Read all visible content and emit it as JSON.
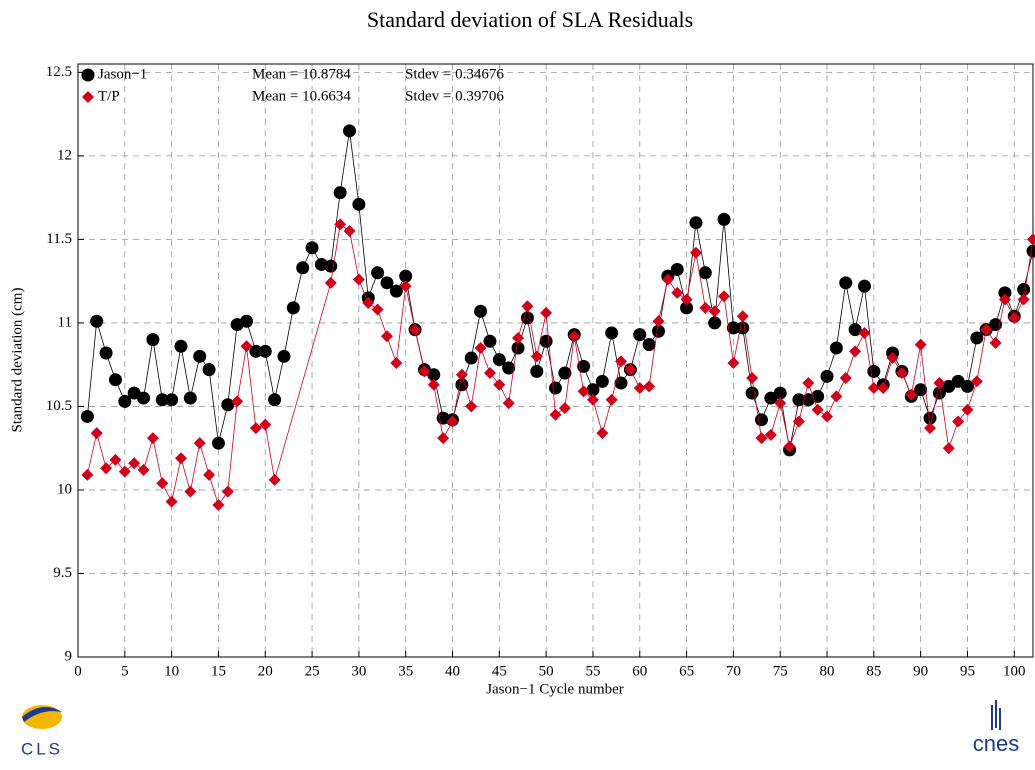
{
  "chart_data": {
    "type": "line",
    "title": "Standard deviation of SLA Residuals",
    "x_label": "Jason−1 Cycle number",
    "y_label": "Standard deviation (cm)",
    "xlim": [
      0,
      102
    ],
    "ylim": [
      9,
      12.55
    ],
    "xticks": [
      0,
      5,
      10,
      15,
      20,
      25,
      30,
      35,
      40,
      45,
      50,
      55,
      60,
      65,
      70,
      75,
      80,
      85,
      90,
      95,
      100
    ],
    "yticks": [
      9,
      9.5,
      10,
      10.5,
      11,
      11.5,
      12,
      12.5
    ],
    "grid": true,
    "legend": "top-left",
    "logos": [
      "CLS",
      "cnes"
    ],
    "series": [
      {
        "name": "Jason−1",
        "color": "#000000",
        "marker": "circle",
        "mean_label": "Mean = 10.8784",
        "stdev_label": "Stdev = 0.34676",
        "x": [
          1,
          2,
          3,
          4,
          5,
          6,
          7,
          8,
          9,
          10,
          11,
          12,
          13,
          14,
          15,
          16,
          17,
          18,
          19,
          20,
          21,
          22,
          23,
          24,
          25,
          26,
          27,
          28,
          29,
          30,
          31,
          32,
          33,
          34,
          35,
          36,
          37,
          38,
          39,
          40,
          41,
          42,
          43,
          44,
          45,
          46,
          47,
          48,
          49,
          50,
          51,
          52,
          53,
          54,
          55,
          56,
          57,
          58,
          59,
          60,
          61,
          62,
          63,
          64,
          65,
          66,
          67,
          68,
          69,
          70,
          71,
          72,
          73,
          74,
          75,
          76,
          77,
          78,
          79,
          80,
          81,
          82,
          83,
          84,
          85,
          86,
          87,
          88,
          89,
          90,
          91,
          92,
          93,
          94,
          95,
          96,
          97,
          98,
          99,
          100,
          101,
          102
        ],
        "values": [
          10.44,
          11.01,
          10.82,
          10.66,
          10.53,
          10.58,
          10.55,
          10.9,
          10.54,
          10.54,
          10.86,
          10.55,
          10.8,
          10.72,
          10.28,
          10.51,
          10.99,
          11.01,
          10.83,
          10.83,
          10.54,
          10.8,
          11.09,
          11.33,
          11.45,
          11.35,
          11.34,
          11.78,
          12.15,
          11.71,
          11.15,
          11.3,
          11.24,
          11.19,
          11.28,
          10.96,
          10.72,
          10.69,
          10.43,
          10.42,
          10.63,
          10.79,
          11.07,
          10.89,
          10.78,
          10.73,
          10.85,
          11.03,
          10.71,
          10.89,
          10.61,
          10.7,
          10.93,
          10.74,
          10.6,
          10.65,
          10.94,
          10.64,
          10.72,
          10.93,
          10.87,
          10.95,
          11.28,
          11.32,
          11.09,
          11.6,
          11.3,
          11.0,
          11.62,
          10.97,
          10.97,
          10.58,
          10.42,
          10.55,
          10.58,
          10.24,
          10.54,
          10.54,
          10.56,
          10.68,
          10.85,
          11.24,
          10.96,
          11.22,
          10.71,
          10.63,
          10.82,
          10.71,
          10.56,
          10.6,
          10.43,
          10.58,
          10.62,
          10.65,
          10.62,
          10.91,
          10.96,
          10.99,
          11.18,
          11.04,
          11.2,
          11.43
        ]
      },
      {
        "name": "T/P",
        "color": "#d0021b",
        "marker": "diamond",
        "mean_label": "Mean = 10.6634",
        "stdev_label": "Stdev = 0.39706",
        "x": [
          1,
          2,
          3,
          4,
          5,
          6,
          7,
          8,
          9,
          10,
          11,
          12,
          13,
          14,
          15,
          16,
          17,
          18,
          19,
          20,
          21,
          27,
          28,
          29,
          30,
          31,
          32,
          33,
          34,
          35,
          36,
          37,
          38,
          39,
          40,
          41,
          42,
          43,
          44,
          45,
          46,
          47,
          48,
          49,
          50,
          51,
          52,
          53,
          54,
          55,
          56,
          57,
          58,
          59,
          60,
          61,
          62,
          63,
          64,
          65,
          66,
          67,
          68,
          69,
          70,
          71,
          72,
          73,
          74,
          75,
          76,
          77,
          78,
          79,
          80,
          81,
          82,
          83,
          84,
          85,
          86,
          87,
          88,
          89,
          90,
          91,
          92,
          93,
          94,
          95,
          96,
          97,
          98,
          99,
          100,
          101,
          102
        ],
        "values": [
          10.09,
          10.34,
          10.13,
          10.18,
          10.11,
          10.16,
          10.12,
          10.31,
          10.04,
          9.93,
          10.19,
          9.99,
          10.28,
          10.09,
          9.91,
          9.99,
          10.53,
          10.86,
          10.37,
          10.39,
          10.06,
          11.24,
          11.59,
          11.55,
          11.26,
          11.12,
          11.08,
          10.92,
          10.76,
          11.22,
          10.96,
          10.71,
          10.63,
          10.31,
          10.41,
          10.69,
          10.5,
          10.85,
          10.7,
          10.63,
          10.52,
          10.91,
          11.1,
          10.8,
          11.06,
          10.45,
          10.49,
          10.92,
          10.59,
          10.54,
          10.34,
          10.54,
          10.77,
          10.72,
          10.61,
          10.62,
          11.01,
          11.26,
          11.18,
          11.14,
          11.42,
          11.09,
          11.07,
          11.16,
          10.76,
          11.04,
          10.67,
          10.31,
          10.33,
          10.52,
          10.26,
          10.41,
          10.64,
          10.48,
          10.44,
          10.56,
          10.67,
          10.83,
          10.94,
          10.61,
          10.61,
          10.79,
          10.7,
          10.57,
          10.87,
          10.37,
          10.64,
          10.25,
          10.41,
          10.48,
          10.65,
          10.96,
          10.88,
          11.14,
          11.03,
          11.14,
          11.5
        ]
      }
    ]
  }
}
